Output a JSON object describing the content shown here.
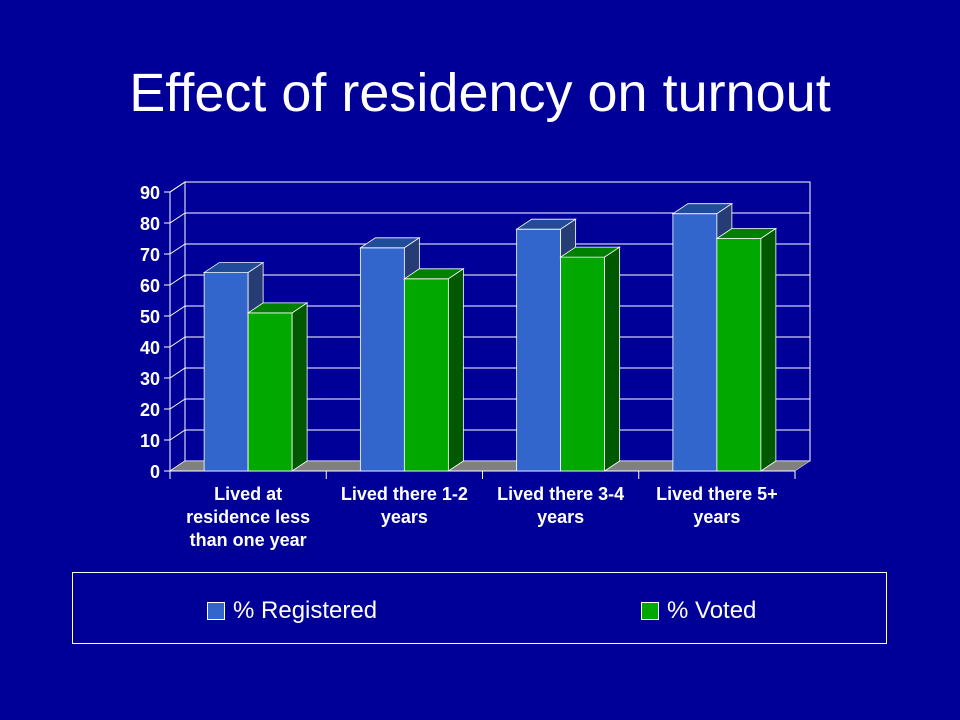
{
  "slide": {
    "title": "Effect of residency on turnout"
  },
  "chart_data": {
    "type": "bar",
    "title": "",
    "xlabel": "",
    "ylabel": "",
    "ylim": [
      0,
      90
    ],
    "yticks": [
      0,
      10,
      20,
      30,
      40,
      50,
      60,
      70,
      80,
      90
    ],
    "categories": [
      [
        "Lived at",
        "residence less",
        "than one year"
      ],
      [
        "Lived there 1-2",
        "years"
      ],
      [
        "Lived there 3-4",
        "years"
      ],
      [
        "Lived there 5+",
        "years"
      ]
    ],
    "series": [
      {
        "name": "% Registered",
        "values": [
          64,
          72,
          78,
          83
        ],
        "color": "#3366cc",
        "top": "#1f4d99",
        "side": "#263c75"
      },
      {
        "name": "% Voted",
        "values": [
          51,
          62,
          69,
          75
        ],
        "color": "#00a800",
        "top": "#008000",
        "side": "#005800"
      }
    ],
    "grid": true,
    "legend": "bottom",
    "style": {
      "three_d": true,
      "floor_color": "#808080",
      "gridline_color": "#ffffff"
    }
  }
}
